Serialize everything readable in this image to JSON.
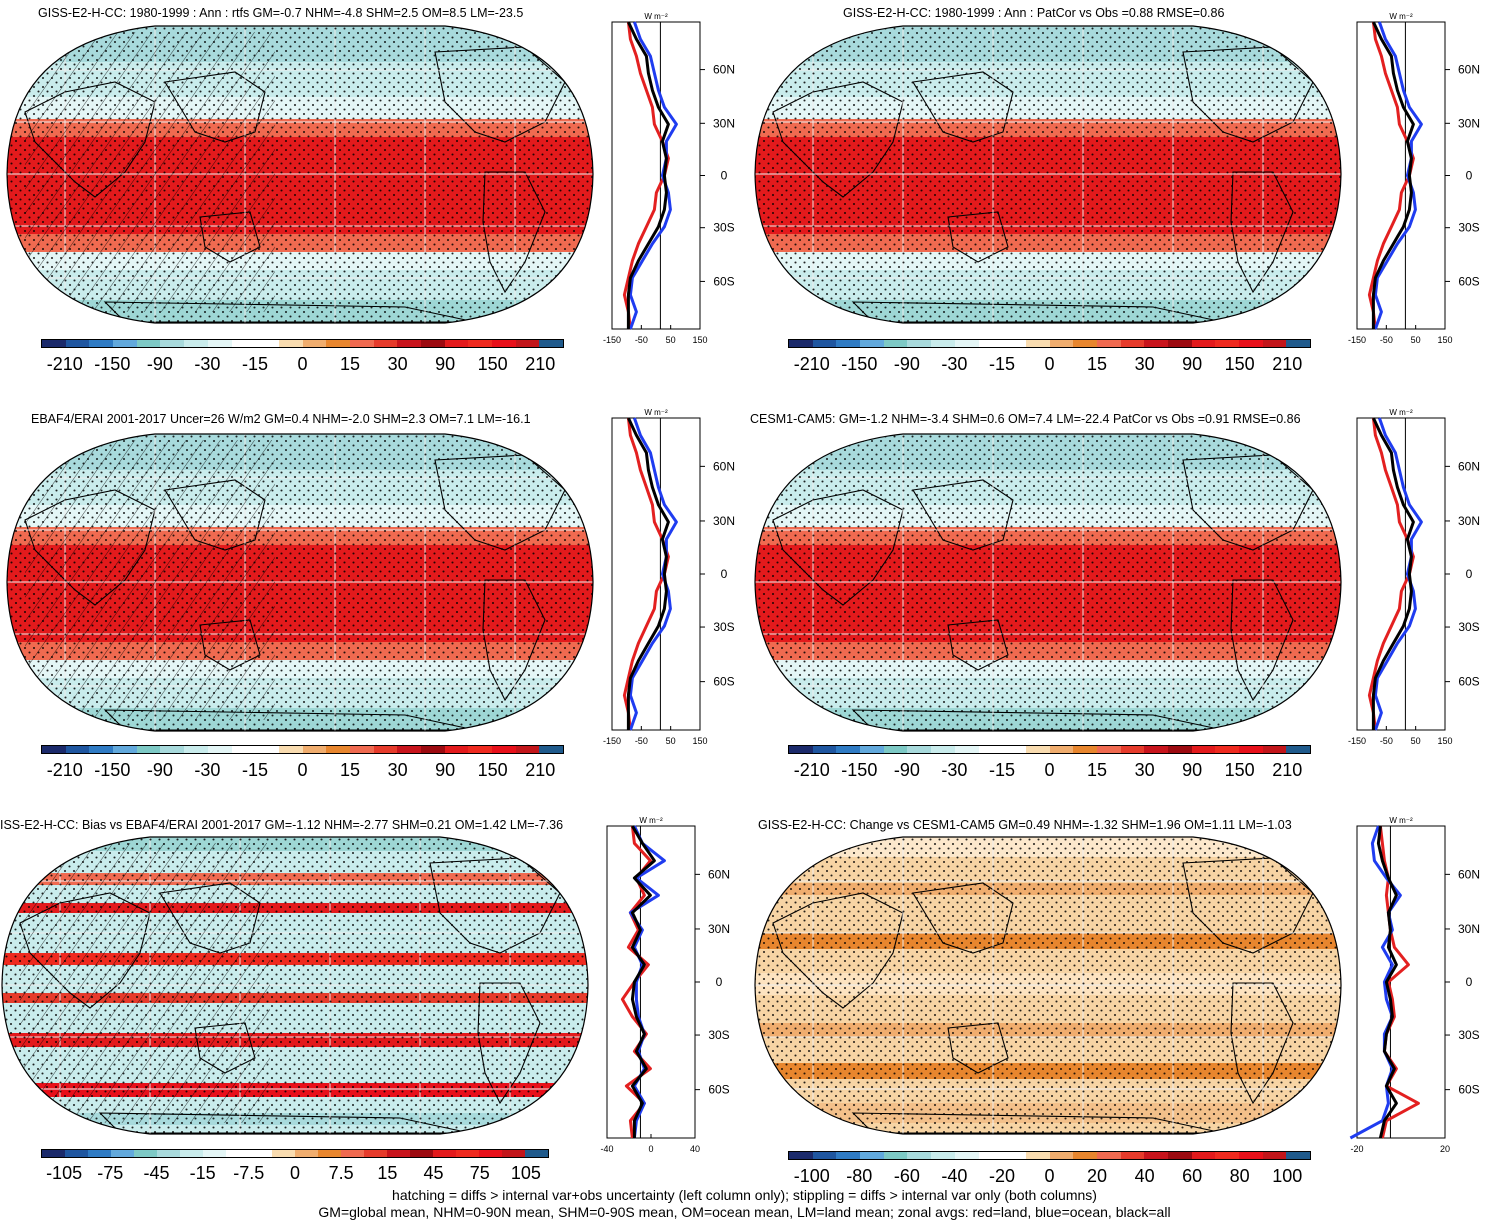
{
  "panels": [
    {
      "title": "GISS-E2-H-CC: 1980-1999 : Ann : rtfs GM=-0.7 NHM=-4.8 SHM=2.5 OM=8.5 LM=-23.5",
      "colorbar_labels": [
        "-210",
        "-150",
        "-90",
        "-30",
        "-15",
        "0",
        "15",
        "30",
        "90",
        "150",
        "210"
      ],
      "zonal_xticks": [
        "-150",
        "-50",
        "50",
        "150"
      ]
    },
    {
      "title": "GISS-E2-H-CC: 1980-1999 : Ann : PatCor vs Obs =0.88 RMSE=0.86",
      "colorbar_labels": [
        "-210",
        "-150",
        "-90",
        "-30",
        "-15",
        "0",
        "15",
        "30",
        "90",
        "150",
        "210"
      ],
      "zonal_xticks": [
        "-150",
        "-50",
        "50",
        "150"
      ]
    },
    {
      "title": "EBAF4/ERAI 2001-2017 Uncer=26 W/m2 GM=0.4 NHM=-2.0 SHM=2.3 OM=7.1 LM=-16.1",
      "colorbar_labels": [
        "-210",
        "-150",
        "-90",
        "-30",
        "-15",
        "0",
        "15",
        "30",
        "90",
        "150",
        "210"
      ],
      "zonal_xticks": [
        "-150",
        "-50",
        "50",
        "150"
      ]
    },
    {
      "title": "CESM1-CAM5: GM=-1.2 NHM=-3.4 SHM=0.6 OM=7.4 LM=-22.4 PatCor vs Obs =0.91 RMSE=0.86",
      "colorbar_labels": [
        "-210",
        "-150",
        "-90",
        "-30",
        "-15",
        "0",
        "15",
        "30",
        "90",
        "150",
        "210"
      ],
      "zonal_xticks": [
        "-150",
        "-50",
        "50",
        "150"
      ]
    },
    {
      "title": "ISS-E2-H-CC: Bias vs EBAF4/ERAI 2001-2017 GM=-1.12 NHM=-2.77 SHM=0.21 OM=1.42 LM=-7.36",
      "colorbar_labels": [
        "-105",
        "-75",
        "-45",
        "-15",
        "-7.5",
        "0",
        "7.5",
        "15",
        "45",
        "75",
        "105"
      ],
      "zonal_xticks": [
        "-40",
        "0",
        "40"
      ]
    },
    {
      "title": "GISS-E2-H-CC: Change vs CESM1-CAM5 GM=0.49 NHM=-1.32 SHM=1.96 OM=1.11 LM=-1.03",
      "colorbar_labels": [
        "-100",
        "-80",
        "-60",
        "-40",
        "-20",
        "0",
        "20",
        "40",
        "60",
        "80",
        "100"
      ],
      "zonal_xticks": [
        "-20",
        "20"
      ]
    }
  ],
  "zonal_unit": "W m⁻²",
  "lat_labels": [
    "60N",
    "30N",
    "0",
    "30S",
    "60S"
  ],
  "colors": {
    "palette": [
      "#1b2a6b",
      "#1f56a0",
      "#2f7bc4",
      "#62a9dc",
      "#7dc9c5",
      "#a8dadc",
      "#c9ecec",
      "#e4f6f6",
      "#ffffff",
      "#ffffff",
      "#f9dcb0",
      "#f0ad6e",
      "#e8862e",
      "#f06a50",
      "#e63b2b",
      "#c8141c",
      "#9c0a10",
      "#e31a1c",
      "#ef2a1f",
      "#e8101a",
      "#c2151a",
      "#1f5a8c"
    ],
    "land_line": "#e32020",
    "ocean_line": "#1f3cf0",
    "all_line": "#000000",
    "warm": "#e42a1e",
    "cold": "#8ecfd0"
  },
  "footer": {
    "line1": "hatching = diffs > internal var+obs uncertainty (left column only); stippling = diffs > internal var only (both columns)",
    "line2": "GM=global mean, NHM=0-90N mean, SHM=0-90S mean, OM=ocean mean, LM=land mean; zonal avgs: red=land, blue=ocean, black=all"
  }
}
